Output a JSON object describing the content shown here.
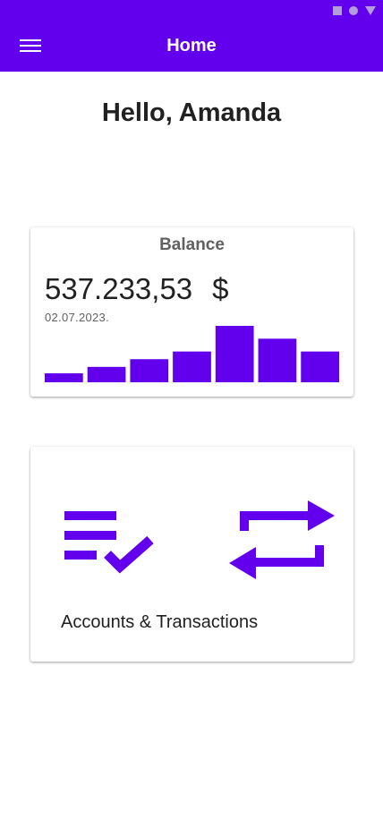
{
  "app_bar": {
    "title": "Home",
    "menu_icon": "menu-icon",
    "color": "#6200ee"
  },
  "status_bar": {
    "icons": [
      "square-icon",
      "circle-icon",
      "triangle-icon"
    ]
  },
  "greeting": "Hello, Amanda",
  "balance_card": {
    "title": "Balance",
    "amount": "537.233,53",
    "currency": "$",
    "date": "02.07.2023.",
    "chart_data": {
      "type": "bar",
      "values": [
        7,
        12,
        18,
        24,
        44,
        34,
        24
      ],
      "color": "#6200ee"
    }
  },
  "accounts_card": {
    "label": "Accounts & Transactions",
    "icons": [
      "list-check-icon",
      "swap-arrows-icon"
    ],
    "icon_color": "#6200ee"
  }
}
